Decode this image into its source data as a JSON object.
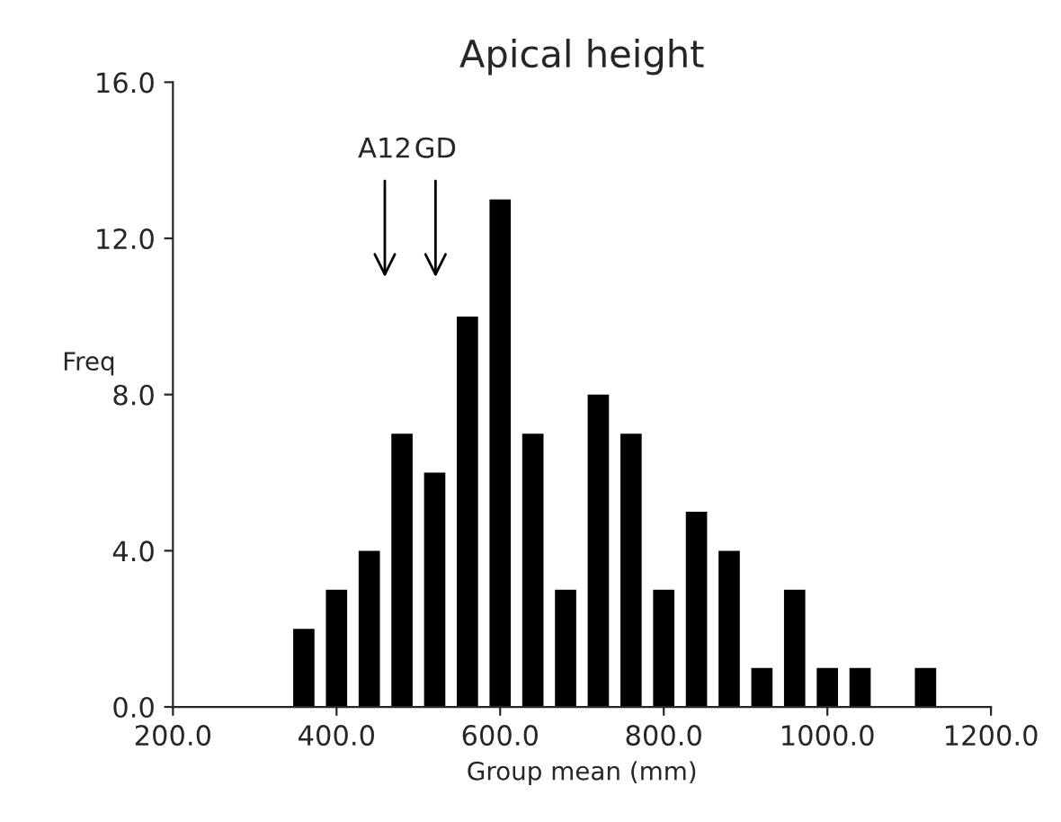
{
  "chart_data": {
    "type": "histogram",
    "title": "Apical height",
    "xlabel": "Group mean (mm)",
    "ylabel": "Freq",
    "bins": [
      340,
      380,
      420,
      460,
      500,
      540,
      580,
      620,
      660,
      700,
      740,
      780,
      820,
      860,
      900,
      940,
      980,
      1020,
      1060,
      1100,
      1140
    ],
    "values": [
      2,
      3,
      4,
      7,
      6,
      10,
      13,
      7,
      3,
      8,
      7,
      3,
      5,
      4,
      1,
      3,
      1,
      1,
      0,
      1
    ],
    "color": "#000000",
    "xlim": [
      200,
      1200
    ],
    "xticks": [
      {
        "value": 200,
        "label": "200.0"
      },
      {
        "value": 400,
        "label": "400.0"
      },
      {
        "value": 600,
        "label": "600.0"
      },
      {
        "value": 800,
        "label": "800.0"
      },
      {
        "value": 1000,
        "label": "1000.0"
      },
      {
        "value": 1200,
        "label": "1200.0"
      }
    ],
    "ylim": [
      0,
      16
    ],
    "yticks": [
      {
        "value": 0,
        "label": "0.0"
      },
      {
        "value": 4,
        "label": "4.0"
      },
      {
        "value": 8,
        "label": "8.0"
      },
      {
        "value": 12,
        "label": "12.0"
      },
      {
        "value": 16,
        "label": "16.0"
      }
    ],
    "annotations": [
      "A12",
      "GD"
    ],
    "grid": false
  }
}
